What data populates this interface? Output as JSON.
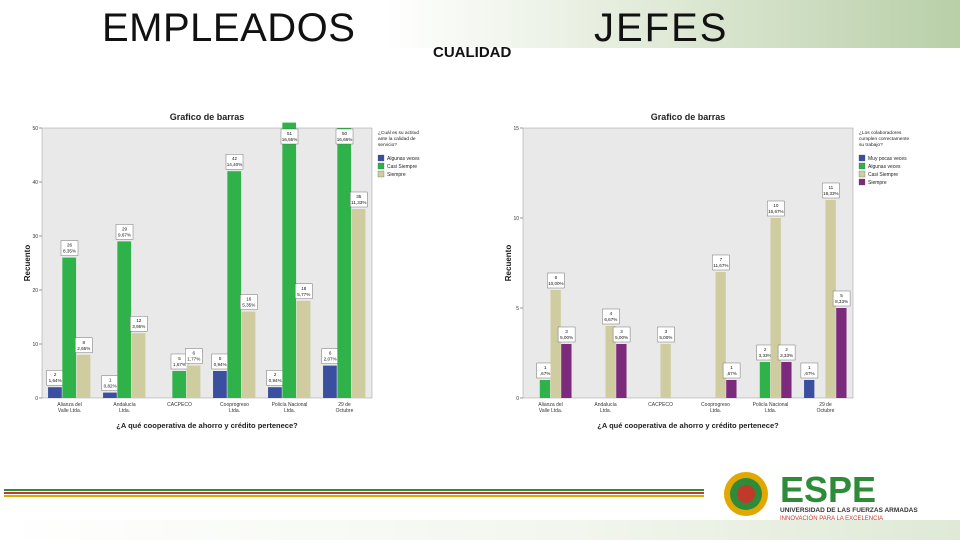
{
  "header": {
    "left_title": "EMPLEADOS",
    "right_title": "JEFES",
    "subtitle": "CUALIDAD"
  },
  "logo": {
    "name": "ESPE",
    "line1": "UNIVERSIDAD DE LAS FUERZAS ARMADAS",
    "line2": "INNOVACIÓN PARA LA EXCELENCIA",
    "colors": {
      "green": "#2e8b3a",
      "red": "#c0392b",
      "gold": "#e0a800"
    }
  },
  "colors": {
    "series": [
      "#3b4fa0",
      "#2fb24a",
      "#cfcca0",
      "#7b2a7c"
    ],
    "plot_bg": "#e9e9e9"
  },
  "chart_data": [
    {
      "type": "bar",
      "title": "Grafico de barras",
      "xlabel": "¿A qué cooperativa de ahorro y crédito pertenece?",
      "ylabel": "Recuento",
      "ylim": [
        0,
        50
      ],
      "yticks": [
        "0",
        "10",
        "20",
        "30",
        "40",
        "50"
      ],
      "categories": [
        "Alianza del Valle Ltda.",
        "Andalucía Ltda.",
        "CACPECO",
        "Cooprogreso Ltda.",
        "Policía Nacional Ltda.",
        "29 de Octubre"
      ],
      "legend_title": "¿Cuál es su actitud ante la calidad de servicio?",
      "legend_position": "top-right",
      "series": [
        {
          "name": "Algunas veces",
          "color_index": 0,
          "values": [
            2,
            1,
            0,
            5,
            2,
            6
          ],
          "labels": [
            "2\n1,64%",
            "1\n0,82%",
            "",
            "5\n0,94%",
            "2\n0,94%",
            "6\n2,07%"
          ]
        },
        {
          "name": "Casi Siempre",
          "color_index": 1,
          "values": [
            26,
            29,
            5,
            42,
            51,
            50
          ],
          "labels": [
            "26\n8,35%",
            "29\n9,67%",
            "5\n1,67%",
            "42\n14,40%",
            "51\n16,55%",
            "50\n16,66%"
          ]
        },
        {
          "name": "Siempre",
          "color_index": 2,
          "values": [
            8,
            12,
            6,
            16,
            18,
            35
          ],
          "labels": [
            "8\n2,65%",
            "12\n3,95%",
            "6\n1,77%",
            "16\n5,35%",
            "18\n5,77%",
            "35\n11,33%"
          ]
        }
      ]
    },
    {
      "type": "bar",
      "title": "Grafico de barras",
      "xlabel": "¿A qué cooperativa de ahorro y crédito pertenece?",
      "ylabel": "Recuento",
      "ylim": [
        0,
        15
      ],
      "yticks": [
        "0",
        "5",
        "10",
        "15"
      ],
      "categories": [
        "Alianza del Valle Ltda.",
        "Andalucía Ltda.",
        "CACPECO",
        "Cooprogreso Ltda.",
        "Policía Nacional Ltda.",
        "29 de Octubre"
      ],
      "legend_title": "¿Los colaboradores cumplen correctamente su trabajo?",
      "legend_position": "top-right",
      "series": [
        {
          "name": "Muy pocas veces",
          "color_index": 0,
          "values": [
            0,
            0,
            0,
            0,
            0,
            1
          ],
          "labels": [
            "",
            "",
            "",
            "",
            "",
            "1\n,67%"
          ]
        },
        {
          "name": "Algunas veces",
          "color_index": 1,
          "values": [
            1,
            0,
            0,
            0,
            2,
            0
          ],
          "labels": [
            "1\n,67%",
            "",
            "",
            "",
            "2\n3,33%",
            ""
          ]
        },
        {
          "name": "Casi Siempre",
          "color_index": 2,
          "values": [
            6,
            4,
            3,
            7,
            10,
            11
          ],
          "labels": [
            "6\n10,00%",
            "4\n6,67%",
            "3\n5,00%",
            "7\n11,67%",
            "10\n16,67%",
            "11\n18,33%"
          ]
        },
        {
          "name": "Siempre",
          "color_index": 3,
          "values": [
            3,
            3,
            0,
            1,
            2,
            5
          ],
          "labels": [
            "3\n5,00%",
            "3\n5,00%",
            "",
            "1\n,67%",
            "2\n3,33%",
            "5\n8,33%"
          ]
        }
      ]
    }
  ]
}
